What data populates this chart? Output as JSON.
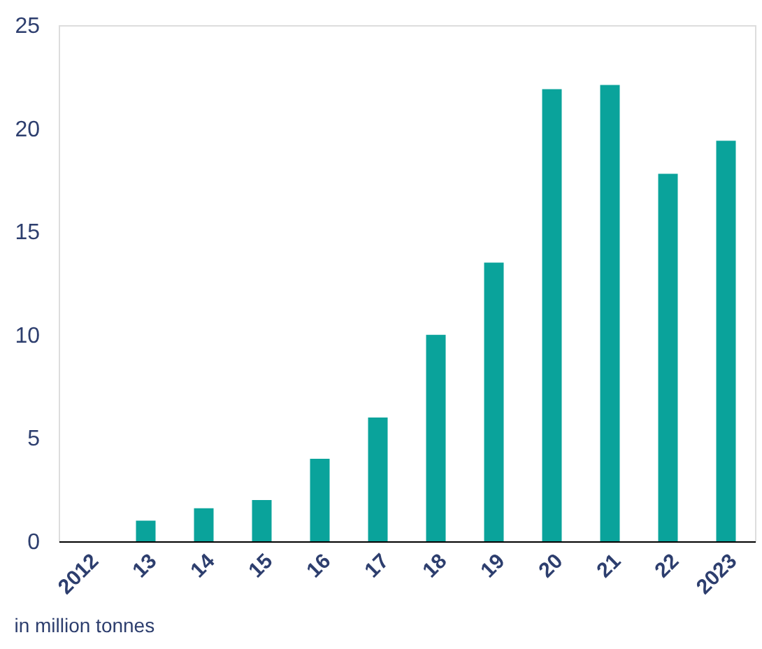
{
  "chart_data": {
    "type": "bar",
    "categories": [
      "2012",
      "13",
      "14",
      "15",
      "16",
      "17",
      "18",
      "19",
      "20",
      "21",
      "22",
      "2023"
    ],
    "values": [
      0,
      1.0,
      1.6,
      2.0,
      4.0,
      6.0,
      10.0,
      13.5,
      21.9,
      22.1,
      17.8,
      19.4
    ],
    "color": "#0aa39b",
    "ylim": [
      0,
      25
    ],
    "yticks": [
      0,
      5,
      10,
      15,
      20,
      25
    ],
    "grid": false,
    "annotations": [
      "in million tonnes"
    ]
  }
}
